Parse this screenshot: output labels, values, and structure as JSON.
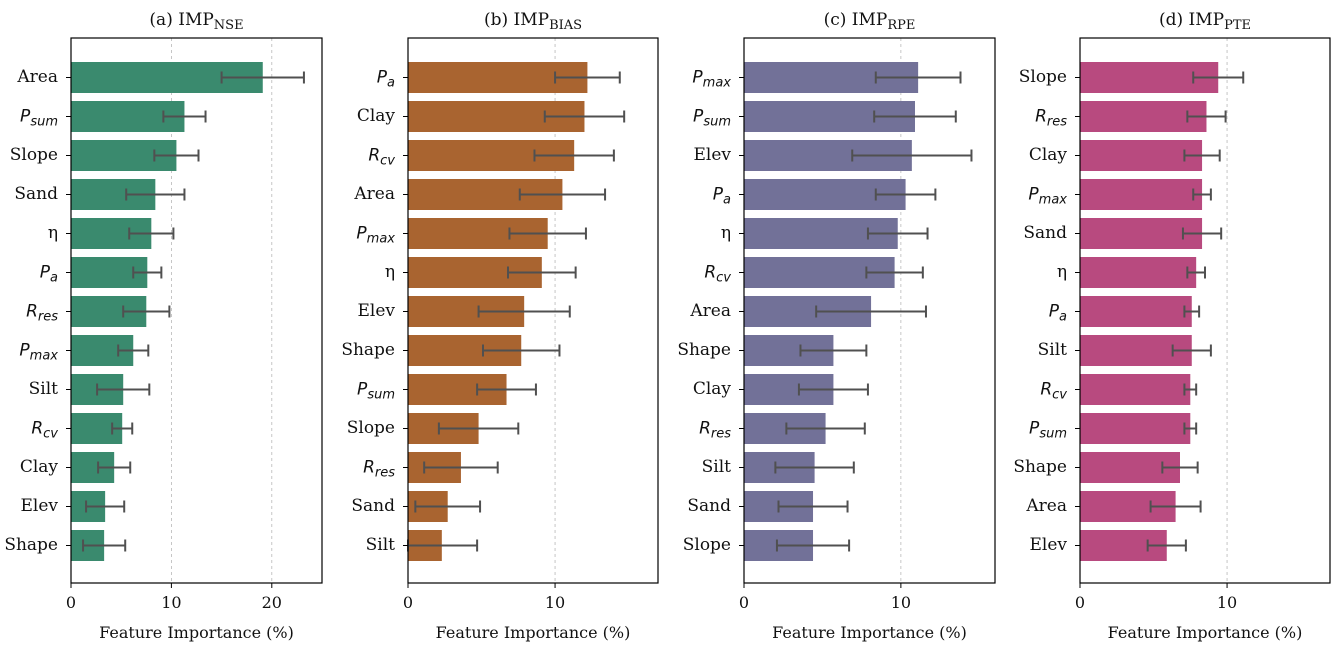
{
  "chart_data": [
    {
      "type": "bar",
      "orientation": "horizontal",
      "title": "(a) IMP",
      "title_sub": "NSE",
      "xlabel": "Feature Importance (%)",
      "xlim": [
        0,
        25
      ],
      "xticks": [
        0,
        10,
        20
      ],
      "grid": "vertical dashed at ticks",
      "color": "#3a8a6e",
      "categories": [
        "Area",
        "P_sum",
        "Slope",
        "Sand",
        "η",
        "P_a",
        "R_res",
        "P_max",
        "Silt",
        "R_cv",
        "Clay",
        "Elev",
        "Shape"
      ],
      "values": [
        19.1,
        11.3,
        10.5,
        8.4,
        8.0,
        7.6,
        7.5,
        6.2,
        5.2,
        5.1,
        4.3,
        3.4,
        3.3
      ],
      "errors": [
        4.1,
        2.1,
        2.2,
        2.9,
        2.2,
        1.4,
        2.3,
        1.5,
        2.6,
        1.0,
        1.6,
        1.9,
        2.1
      ]
    },
    {
      "type": "bar",
      "orientation": "horizontal",
      "title": "(b) IMP",
      "title_sub": "BIAS",
      "xlabel": "Feature Importance (%)",
      "xlim": [
        0,
        17
      ],
      "xticks": [
        0,
        10
      ],
      "grid": "vertical dashed at ticks",
      "color": "#a96430",
      "categories": [
        "P_a",
        "Clay",
        "R_cv",
        "Area",
        "P_max",
        "η",
        "Elev",
        "Shape",
        "P_sum",
        "Slope",
        "R_res",
        "Sand",
        "Silt"
      ],
      "values": [
        12.2,
        12.0,
        11.3,
        10.5,
        9.5,
        9.1,
        7.9,
        7.7,
        6.7,
        4.8,
        3.6,
        2.7,
        2.3
      ],
      "errors": [
        2.2,
        2.7,
        2.7,
        2.9,
        2.6,
        2.3,
        3.1,
        2.6,
        2.0,
        2.7,
        2.5,
        2.2,
        2.4
      ]
    },
    {
      "type": "bar",
      "orientation": "horizontal",
      "title": "(c) IMP",
      "title_sub": "RPE",
      "xlabel": "Feature Importance (%)",
      "xlim": [
        0,
        16
      ],
      "xticks": [
        0,
        10
      ],
      "grid": "vertical dashed at ticks",
      "color": "#727198",
      "categories": [
        "P_max",
        "P_sum",
        "Elev",
        "P_a",
        "η",
        "R_cv",
        "Area",
        "Shape",
        "Clay",
        "R_res",
        "Silt",
        "Sand",
        "Slope"
      ],
      "values": [
        11.1,
        10.9,
        10.7,
        10.3,
        9.8,
        9.6,
        8.1,
        5.7,
        5.7,
        5.2,
        4.5,
        4.4,
        4.4
      ],
      "errors": [
        2.7,
        2.6,
        3.8,
        1.9,
        1.9,
        1.8,
        3.5,
        2.1,
        2.2,
        2.5,
        2.5,
        2.2,
        2.3
      ]
    },
    {
      "type": "bar",
      "orientation": "horizontal",
      "title": "(d) IMP",
      "title_sub": "PTE",
      "xlabel": "Feature Importance (%)",
      "xlim": [
        0,
        17
      ],
      "xticks": [
        0,
        10
      ],
      "grid": "vertical dashed at ticks",
      "color": "#b84a7f",
      "categories": [
        "Slope",
        "R_res",
        "Clay",
        "P_max",
        "Sand",
        "η",
        "P_a",
        "Silt",
        "R_cv",
        "P_sum",
        "Shape",
        "Area",
        "Elev"
      ],
      "values": [
        9.4,
        8.6,
        8.3,
        8.3,
        8.3,
        7.9,
        7.6,
        7.6,
        7.5,
        7.5,
        6.8,
        6.5,
        5.9
      ],
      "errors": [
        1.7,
        1.3,
        1.2,
        0.6,
        1.3,
        0.6,
        0.5,
        1.3,
        0.4,
        0.4,
        1.2,
        1.7,
        1.3
      ]
    }
  ]
}
